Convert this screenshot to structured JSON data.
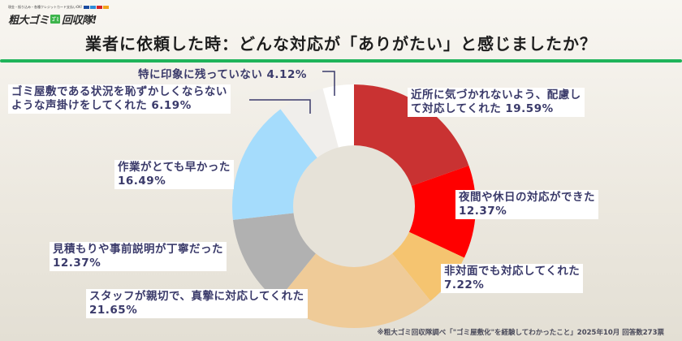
{
  "brand": {
    "tagline": "現金・振り込み・各種クレジットカード支払いOK!",
    "name_part1": "粗大ゴミ",
    "badge": "ｺﾞﾐ",
    "name_part2": "回収隊!",
    "card_colors": [
      "#1a4ba0",
      "#2e8bd8",
      "#d6232a",
      "#f2a31b"
    ]
  },
  "title": "業者に依頼した時：どんな対応が「ありがたい」と感じましたか？",
  "accent_color": "#1fb45a",
  "labels": {
    "l0": {
      "line1": "近所に気づかれないよう、配慮し",
      "line2": "て対応してくれた 19.59%"
    },
    "l1": {
      "line1": "夜間や休日の対応ができた",
      "line2": "12.37%"
    },
    "l2": {
      "line1": "非対面でも対応してくれた",
      "line2": "7.22%"
    },
    "l3": {
      "line1": "スタッフが親切で、真摯に対応してくれた",
      "line2": "21.65%"
    },
    "l4": {
      "line1": "見積もりや事前説明が丁寧だった",
      "line2": "12.37%"
    },
    "l5": {
      "line1": "作業がとても早かった",
      "line2": "16.49%"
    },
    "l6": {
      "line1": "ゴミ屋敷である状況を恥ずかしくならない",
      "line2": "ような声掛けをしてくれた 6.19%"
    },
    "l7": {
      "line1": "特に印象に残っていない 4.12%"
    }
  },
  "footnote": "※粗大ゴミ回収隊調べ「\"ゴミ屋敷化\"を経験してわかったこと」2025年10月 回答数273票",
  "chart_data": {
    "type": "pie",
    "variant": "donut",
    "title": "業者に依頼した時：どんな対応が「ありがたい」と感じましたか？",
    "categories": [
      "近所に気づかれないよう、配慮して対応してくれた",
      "夜間や休日の対応ができた",
      "非対面でも対応してくれた",
      "スタッフが親切で、真摯に対応してくれた",
      "見積もりや事前説明が丁寧だった",
      "作業がとても早かった",
      "ゴミ屋敷である状況を恥ずかしくならないような声掛けをしてくれた",
      "特に印象に残っていない"
    ],
    "values": [
      19.59,
      12.37,
      7.22,
      21.65,
      12.37,
      16.49,
      6.19,
      4.12
    ],
    "unit": "%",
    "colors": [
      "#c93232",
      "#ff0000",
      "#f5c470",
      "#efcb98",
      "#b1b1b1",
      "#a5dcfc",
      "#f0eeeb",
      "#ffffff"
    ],
    "start_angle_deg": 0,
    "direction": "clockwise",
    "inner_radius_ratio": 0.5,
    "legend": "none (direct labels)",
    "source": "※粗大ゴミ回収隊調べ「\"ゴミ屋敷化\"を経験してわかったこと」2025年10月 回答数273票"
  }
}
